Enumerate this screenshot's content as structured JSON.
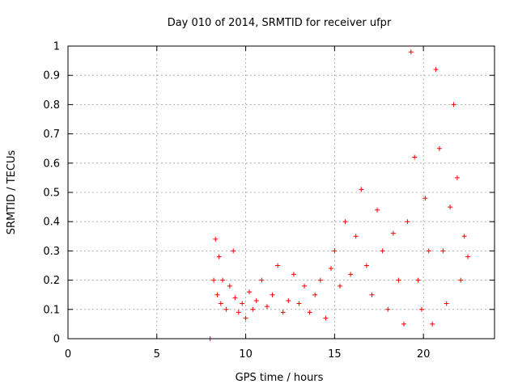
{
  "chart_data": {
    "type": "scatter",
    "title": "Day 010 of 2014, SRMTID for receiver ufpr",
    "xlabel": "GPS time / hours",
    "ylabel": "SRMTID / TECUs",
    "xlim": [
      0,
      24
    ],
    "ylim": [
      0,
      1
    ],
    "x_ticks": [
      0,
      5,
      10,
      15,
      20
    ],
    "x_tick_labels": [
      "0",
      "5",
      "10",
      "15",
      "20"
    ],
    "y_ticks": [
      0,
      0.1,
      0.2,
      0.3,
      0.4,
      0.5,
      0.6,
      0.7,
      0.8,
      0.9,
      1
    ],
    "y_tick_labels": [
      "0",
      "0.1",
      "0.2",
      "0.3",
      "0.4",
      "0.5",
      "0.6",
      "0.7",
      "0.8",
      "0.9",
      "1"
    ],
    "grid": true,
    "marker": "+",
    "color": "#ff0000",
    "series": [
      {
        "name": "SRMTID",
        "x": [
          8.0,
          8.2,
          8.3,
          8.4,
          8.5,
          8.6,
          8.7,
          8.9,
          9.1,
          9.3,
          9.4,
          9.6,
          9.8,
          10.0,
          10.2,
          10.4,
          10.6,
          10.9,
          11.2,
          11.5,
          11.8,
          12.1,
          12.4,
          12.7,
          13.0,
          13.3,
          13.6,
          13.9,
          14.2,
          14.5,
          14.8,
          15.0,
          15.3,
          15.6,
          15.9,
          16.2,
          16.5,
          16.8,
          17.1,
          17.4,
          17.7,
          18.0,
          18.3,
          18.6,
          18.9,
          19.1,
          19.3,
          19.5,
          19.7,
          19.9,
          20.1,
          20.3,
          20.5,
          20.7,
          20.9,
          21.1,
          21.3,
          21.5,
          21.7,
          21.9,
          22.1,
          22.3,
          22.5
        ],
        "y": [
          0.0,
          0.2,
          0.34,
          0.15,
          0.28,
          0.12,
          0.2,
          0.1,
          0.18,
          0.3,
          0.14,
          0.09,
          0.12,
          0.07,
          0.16,
          0.1,
          0.13,
          0.2,
          0.11,
          0.15,
          0.25,
          0.09,
          0.13,
          0.22,
          0.12,
          0.18,
          0.09,
          0.15,
          0.2,
          0.07,
          0.24,
          0.3,
          0.18,
          0.4,
          0.22,
          0.35,
          0.51,
          0.25,
          0.15,
          0.44,
          0.3,
          0.1,
          0.36,
          0.2,
          0.05,
          0.4,
          0.98,
          0.62,
          0.2,
          0.1,
          0.48,
          0.3,
          0.05,
          0.92,
          0.65,
          0.3,
          0.12,
          0.45,
          0.8,
          0.55,
          0.2,
          0.35,
          0.28
        ]
      }
    ]
  }
}
